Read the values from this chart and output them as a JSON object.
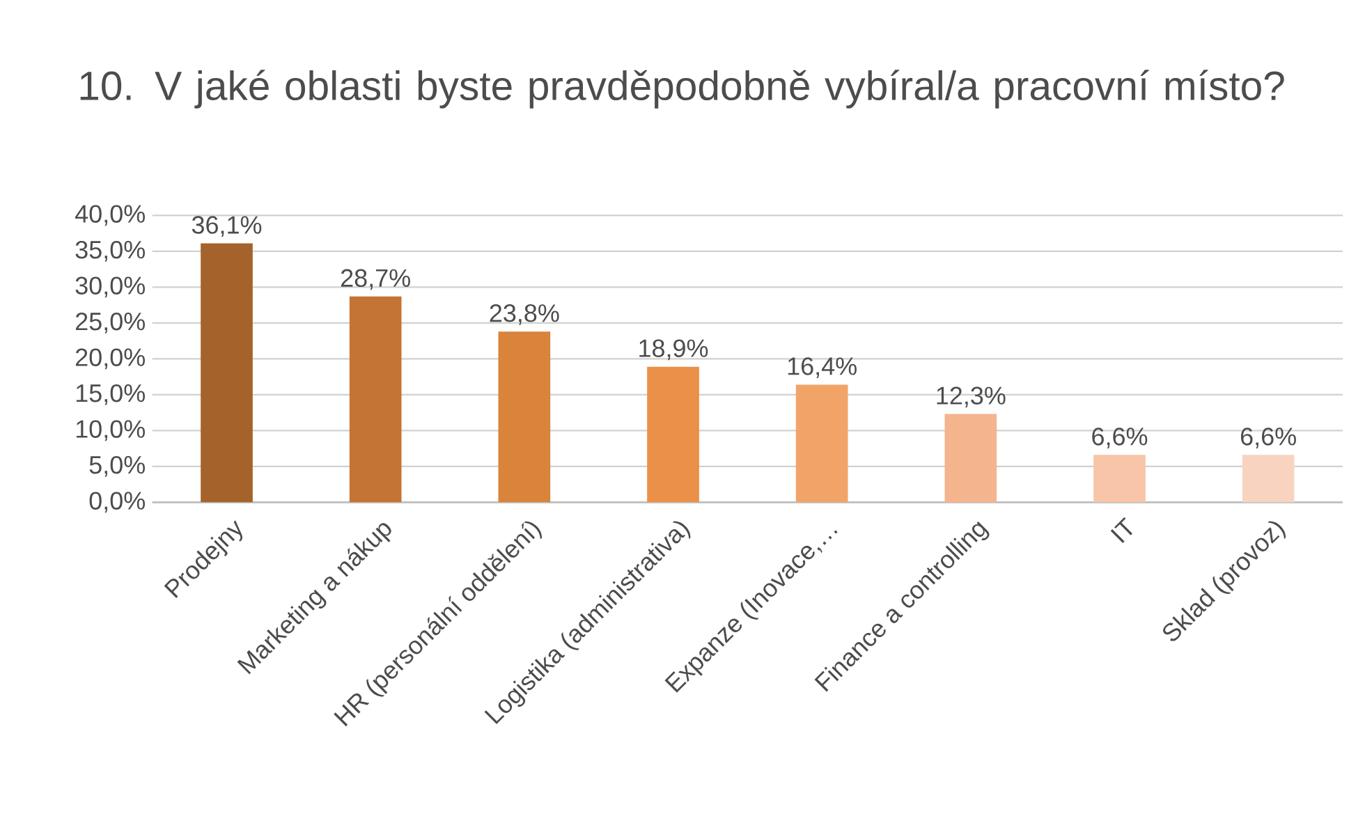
{
  "chart_data": {
    "type": "bar",
    "title": "10. V jaké oblasti byste pravděpodobně  vybíral/a pracovní místo?",
    "categories": [
      "Prodejny",
      "Marketing a nákup",
      "HR (personální oddělení)",
      "Logistika (administrativa)",
      "Expanze (Inovace,…",
      "Finance a controlling",
      "IT",
      "Sklad (provoz)"
    ],
    "values": [
      36.1,
      28.7,
      23.8,
      18.9,
      16.4,
      12.3,
      6.6,
      6.6
    ],
    "value_labels": [
      "36,1%",
      "28,7%",
      "23,8%",
      "18,9%",
      "16,4%",
      "12,3%",
      "6,6%",
      "6,6%"
    ],
    "colors": [
      "#a5622b",
      "#c47434",
      "#d9833b",
      "#ea9048",
      "#f2a468",
      "#f4b48e",
      "#f8c5a8",
      "#f8d4c0"
    ],
    "ylim": [
      0,
      40
    ],
    "yticks": [
      {
        "value": 0,
        "label": "0,0%"
      },
      {
        "value": 5,
        "label": "5,0%"
      },
      {
        "value": 10,
        "label": "10,0%"
      },
      {
        "value": 15,
        "label": "15,0%"
      },
      {
        "value": 20,
        "label": "20,0%"
      },
      {
        "value": 25,
        "label": "25,0%"
      },
      {
        "value": 30,
        "label": "30,0%"
      },
      {
        "value": 35,
        "label": "35,0%"
      },
      {
        "value": 40,
        "label": "40,0%"
      }
    ],
    "grid": "y"
  }
}
